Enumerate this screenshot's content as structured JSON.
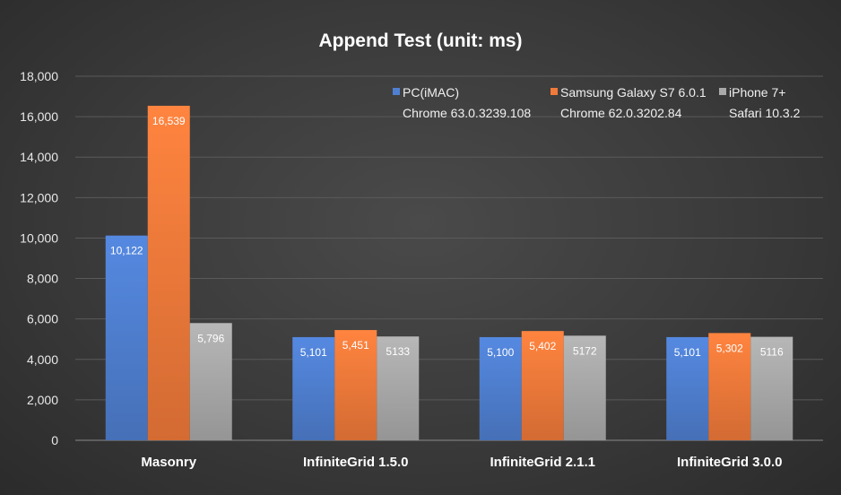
{
  "chart_data": {
    "type": "bar",
    "title": "Append Test (unit: ms)",
    "categories": [
      "Masonry",
      "InfiniteGrid 1.5.0",
      "InfiniteGrid 2.1.1",
      "InfiniteGrid 3.0.0"
    ],
    "series": [
      {
        "name": "PC(iMAC)",
        "name_line2": "Chrome 63.0.3239.108",
        "color": "#4f7fd0",
        "values": [
          10122,
          5101,
          5100,
          5101
        ],
        "labels": [
          "10,122",
          "5,101",
          "5,100",
          "5,101"
        ]
      },
      {
        "name": "Samsung Galaxy S7 6.0.1",
        "name_line2": "Chrome 62.0.3202.84",
        "color": "#f07a3a",
        "values": [
          16539,
          5451,
          5402,
          5302
        ],
        "labels": [
          "16,539",
          "5,451",
          "5,402",
          "5,302"
        ]
      },
      {
        "name": "iPhone 7+",
        "name_line2": "Safari 10.3.2",
        "color": "#a9a9a9",
        "values": [
          5796,
          5133,
          5172,
          5116
        ],
        "labels": [
          "5,796",
          "5133",
          "5172",
          "5116"
        ]
      }
    ],
    "ylim": [
      0,
      18000
    ],
    "yticks": [
      0,
      2000,
      4000,
      6000,
      8000,
      10000,
      12000,
      14000,
      16000,
      18000
    ],
    "ytick_labels": [
      "0",
      "2,000",
      "4,000",
      "6,000",
      "8,000",
      "10,000",
      "12,000",
      "14,000",
      "16,000",
      "18,000"
    ],
    "xlabel": "",
    "ylabel": "",
    "grid": true,
    "legend_position": "top-right"
  }
}
